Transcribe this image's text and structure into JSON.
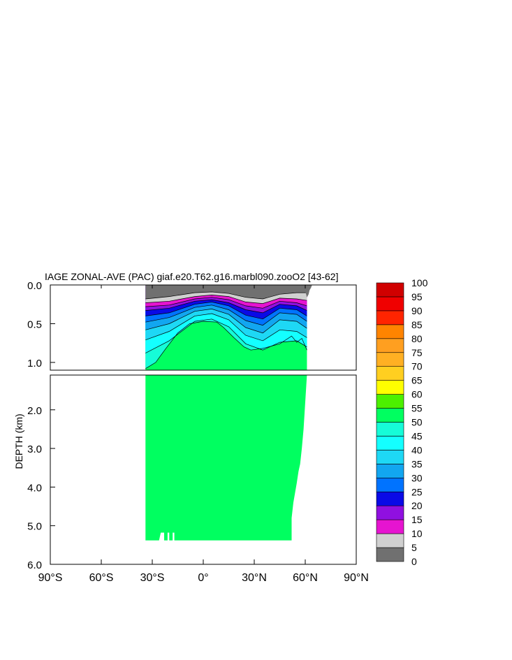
{
  "chart_data": {
    "type": "heatmap",
    "title": "IAGE ZONAL-AVE (PAC) giaf.e20.T62.g16.marbl090.zooO2 [43-62]",
    "ylabel": "DEPTH (km)",
    "xlabel": "",
    "x_ticks": [
      "90°S",
      "60°S",
      "30°S",
      "0°",
      "30°N",
      "60°N",
      "90°N"
    ],
    "x_tick_values": [
      -90,
      -60,
      -30,
      0,
      30,
      60,
      90
    ],
    "xlim": [
      -90,
      90
    ],
    "top_panel": {
      "ylim": [
        0,
        1.1
      ],
      "y_ticks": [
        "0.0",
        "0.5",
        "1.0"
      ],
      "y_tick_values": [
        0,
        0.5,
        1.0
      ]
    },
    "bottom_panel": {
      "ylim": [
        1.1,
        6.0
      ],
      "y_ticks": [
        "2.0",
        "3.0",
        "4.0",
        "5.0",
        "6.0"
      ],
      "y_tick_values": [
        2,
        3,
        4,
        5,
        6
      ]
    },
    "ocean_extent_lat": [
      -34,
      61
    ],
    "colorbar": {
      "levels": [
        "0",
        "5",
        "10",
        "15",
        "20",
        "25",
        "30",
        "35",
        "40",
        "45",
        "50",
        "55",
        "60",
        "65",
        "70",
        "75",
        "80",
        "85",
        "90",
        "95",
        "100"
      ],
      "colors": [
        "#707070",
        "#d0d0d0",
        "#e614d0",
        "#9010e0",
        "#0a0ae6",
        "#0073ff",
        "#12a6f0",
        "#1ed8f5",
        "#14ffff",
        "#16fcd8",
        "#00ff60",
        "#4cf000",
        "#ffff00",
        "#ffcf20",
        "#ffb023",
        "#ff9f20",
        "#ff8400",
        "#ff2400",
        "#f00000",
        "#d00000"
      ]
    },
    "contours": [
      {
        "level": 5,
        "depth_profile": [
          [
            -34,
            0.18
          ],
          [
            -20,
            0.15
          ],
          [
            -5,
            0.1
          ],
          [
            5,
            0.09
          ],
          [
            15,
            0.11
          ],
          [
            25,
            0.16
          ],
          [
            35,
            0.18
          ],
          [
            45,
            0.12
          ],
          [
            55,
            0.1
          ],
          [
            61,
            0.1
          ]
        ]
      },
      {
        "level": 10,
        "depth_profile": [
          [
            -34,
            0.23
          ],
          [
            -20,
            0.21
          ],
          [
            -5,
            0.15
          ],
          [
            5,
            0.13
          ],
          [
            15,
            0.15
          ],
          [
            25,
            0.22
          ],
          [
            35,
            0.24
          ],
          [
            45,
            0.17
          ],
          [
            55,
            0.18
          ],
          [
            61,
            0.2
          ]
        ]
      },
      {
        "level": 15,
        "depth_profile": [
          [
            -34,
            0.28
          ],
          [
            -20,
            0.26
          ],
          [
            -5,
            0.18
          ],
          [
            5,
            0.16
          ],
          [
            15,
            0.19
          ],
          [
            25,
            0.27
          ],
          [
            35,
            0.3
          ],
          [
            45,
            0.21
          ],
          [
            55,
            0.23
          ],
          [
            61,
            0.27
          ]
        ]
      },
      {
        "level": 20,
        "depth_profile": [
          [
            -34,
            0.33
          ],
          [
            -20,
            0.3
          ],
          [
            -5,
            0.21
          ],
          [
            5,
            0.19
          ],
          [
            15,
            0.23
          ],
          [
            25,
            0.32
          ],
          [
            35,
            0.36
          ],
          [
            45,
            0.25
          ],
          [
            55,
            0.27
          ],
          [
            61,
            0.33
          ]
        ]
      },
      {
        "level": 25,
        "depth_profile": [
          [
            -34,
            0.4
          ],
          [
            -20,
            0.36
          ],
          [
            -5,
            0.25
          ],
          [
            5,
            0.22
          ],
          [
            15,
            0.27
          ],
          [
            25,
            0.39
          ],
          [
            35,
            0.44
          ],
          [
            45,
            0.3
          ],
          [
            55,
            0.32
          ],
          [
            61,
            0.4
          ]
        ]
      },
      {
        "level": 30,
        "depth_profile": [
          [
            -34,
            0.48
          ],
          [
            -20,
            0.42
          ],
          [
            -5,
            0.29
          ],
          [
            5,
            0.26
          ],
          [
            15,
            0.32
          ],
          [
            25,
            0.46
          ],
          [
            35,
            0.52
          ],
          [
            45,
            0.36
          ],
          [
            55,
            0.38
          ],
          [
            61,
            0.47
          ]
        ]
      },
      {
        "level": 35,
        "depth_profile": [
          [
            -34,
            0.58
          ],
          [
            -20,
            0.5
          ],
          [
            -5,
            0.34
          ],
          [
            5,
            0.31
          ],
          [
            15,
            0.38
          ],
          [
            25,
            0.55
          ],
          [
            35,
            0.62
          ],
          [
            45,
            0.45
          ],
          [
            55,
            0.47
          ],
          [
            61,
            0.56
          ]
        ]
      },
      {
        "level": 40,
        "depth_profile": [
          [
            -34,
            0.71
          ],
          [
            -20,
            0.6
          ],
          [
            -5,
            0.4
          ],
          [
            5,
            0.37
          ],
          [
            15,
            0.45
          ],
          [
            25,
            0.65
          ],
          [
            35,
            0.72
          ],
          [
            45,
            0.58
          ],
          [
            55,
            0.6
          ],
          [
            61,
            0.68
          ]
        ]
      },
      {
        "level": 45,
        "depth_profile": [
          [
            -34,
            0.88
          ],
          [
            -20,
            0.72
          ],
          [
            -5,
            0.47
          ],
          [
            5,
            0.44
          ],
          [
            15,
            0.54
          ],
          [
            25,
            0.76
          ],
          [
            35,
            0.84
          ],
          [
            45,
            0.74
          ],
          [
            55,
            0.72
          ],
          [
            61,
            0.8
          ]
        ]
      }
    ],
    "contour_50_boundary": [
      [
        -34,
        1.08
      ],
      [
        -28,
        1.0
      ],
      [
        -22,
        0.82
      ],
      [
        -15,
        0.62
      ],
      [
        -8,
        0.5
      ],
      [
        0,
        0.47
      ],
      [
        8,
        0.48
      ],
      [
        12,
        0.55
      ],
      [
        18,
        0.68
      ],
      [
        24,
        0.8
      ],
      [
        28,
        0.84
      ],
      [
        35,
        0.82
      ],
      [
        45,
        0.76
      ],
      [
        52,
        0.66
      ],
      [
        55,
        0.74
      ],
      [
        58,
        0.69
      ],
      [
        61,
        0.84
      ]
    ],
    "seafloor_profile": [
      [
        -34,
        5.38
      ],
      [
        -26,
        5.38
      ],
      [
        -25,
        5.18
      ],
      [
        -23,
        5.18
      ],
      [
        -23,
        5.38
      ],
      [
        -21,
        5.38
      ],
      [
        -21,
        5.18
      ],
      [
        -20,
        5.18
      ],
      [
        -20,
        5.38
      ],
      [
        -18,
        5.38
      ],
      [
        -18,
        5.18
      ],
      [
        -17,
        5.18
      ],
      [
        -17,
        5.38
      ],
      [
        52,
        5.38
      ],
      [
        52,
        4.8
      ],
      [
        53,
        4.4
      ],
      [
        54,
        4.15
      ],
      [
        55,
        3.9
      ],
      [
        56,
        3.6
      ],
      [
        57,
        3.4
      ],
      [
        58,
        3.0
      ],
      [
        59,
        2.5
      ],
      [
        60,
        1.8
      ],
      [
        61,
        1.1
      ]
    ]
  }
}
